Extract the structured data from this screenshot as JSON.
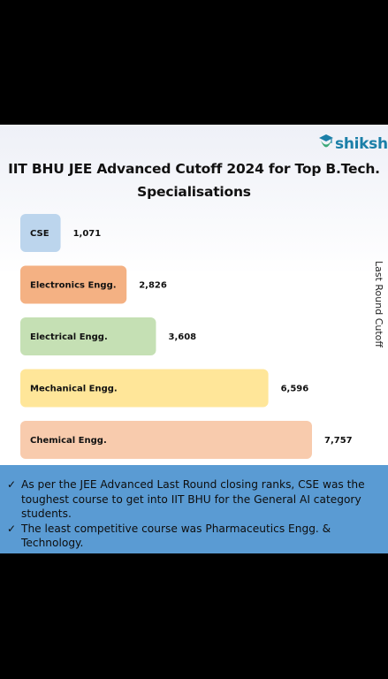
{
  "brand": {
    "name": "shiksha",
    "color": "#1b7fa8"
  },
  "chart_data": {
    "type": "bar",
    "orientation": "horizontal",
    "title": "IIT BHU JEE Advanced Cutoff 2024 for Top B.Tech. Specialisations",
    "ylabel": "Last Round Cutoff",
    "categories": [
      "CSE",
      "Electronics Engg.",
      "Electrical Engg.",
      "Mechanical Engg.",
      "Chemical Engg."
    ],
    "values": [
      1071,
      2826,
      3608,
      6596,
      7757
    ],
    "value_labels": [
      "1,071",
      "2,826",
      "3,608",
      "6,596",
      "7,757"
    ],
    "colors": [
      "#bcd5ed",
      "#f4b183",
      "#c5e0b4",
      "#ffe699",
      "#f8cbad"
    ],
    "grid": false,
    "legend": "none"
  },
  "notes": [
    "As per the JEE Advanced Last Round closing ranks, CSE was the toughest course to get into IIT BHU for the General AI category students.",
    "The least competitive course was Pharmaceutics Engg. & Technology."
  ]
}
